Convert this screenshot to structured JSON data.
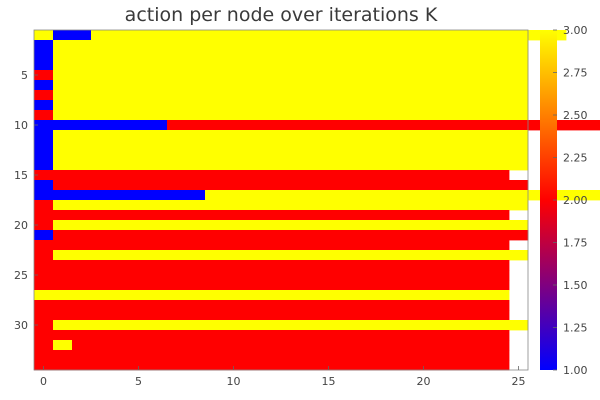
{
  "chart_data": {
    "type": "heatmap",
    "title": "action per node over iterations K",
    "xlabel": "",
    "ylabel": "",
    "x_range": [
      0,
      25
    ],
    "y_range": [
      1,
      34
    ],
    "x_ticks": [
      0,
      5,
      10,
      15,
      20,
      25
    ],
    "y_ticks": [
      5,
      10,
      15,
      20,
      25,
      30
    ],
    "colorbar": {
      "range": [
        1.0,
        3.0
      ],
      "ticks": [
        "1.00",
        "1.25",
        "1.50",
        "1.75",
        "2.00",
        "2.25",
        "2.50",
        "2.75",
        "3.00"
      ],
      "colormap": [
        "#0000ff",
        "#ff0000",
        "#ffff00"
      ]
    },
    "row_segments": [
      {
        "node": 1,
        "segments": [
          [
            1,
            3
          ],
          [
            2,
            1
          ],
          [
            25,
            3
          ]
        ]
      },
      {
        "node": 2,
        "segments": [
          [
            1,
            1
          ],
          [
            25,
            3
          ]
        ]
      },
      {
        "node": 3,
        "segments": [
          [
            1,
            1
          ],
          [
            25,
            3
          ]
        ]
      },
      {
        "node": 4,
        "segments": [
          [
            1,
            1
          ],
          [
            25,
            3
          ]
        ]
      },
      {
        "node": 5,
        "segments": [
          [
            1,
            2
          ],
          [
            25,
            3
          ]
        ]
      },
      {
        "node": 6,
        "segments": [
          [
            1,
            1
          ],
          [
            25,
            3
          ]
        ]
      },
      {
        "node": 7,
        "segments": [
          [
            1,
            2
          ],
          [
            25,
            3
          ]
        ]
      },
      {
        "node": 8,
        "segments": [
          [
            1,
            1
          ],
          [
            25,
            3
          ]
        ]
      },
      {
        "node": 9,
        "segments": [
          [
            1,
            2
          ],
          [
            25,
            3
          ]
        ]
      },
      {
        "node": 10,
        "segments": [
          [
            7,
            1
          ],
          [
            25,
            2
          ]
        ]
      },
      {
        "node": 11,
        "segments": [
          [
            1,
            1
          ],
          [
            25,
            3
          ]
        ]
      },
      {
        "node": 12,
        "segments": [
          [
            1,
            1
          ],
          [
            25,
            3
          ]
        ]
      },
      {
        "node": 13,
        "segments": [
          [
            1,
            1
          ],
          [
            25,
            3
          ]
        ]
      },
      {
        "node": 14,
        "segments": [
          [
            1,
            1
          ],
          [
            25,
            3
          ]
        ]
      },
      {
        "node": 15,
        "segments": [
          [
            25,
            2
          ]
        ]
      },
      {
        "node": 16,
        "segments": [
          [
            1,
            1
          ],
          [
            25,
            2
          ]
        ]
      },
      {
        "node": 17,
        "segments": [
          [
            9,
            1
          ],
          [
            25,
            3
          ]
        ]
      },
      {
        "node": 18,
        "segments": [
          [
            1,
            2
          ],
          [
            25,
            3
          ]
        ]
      },
      {
        "node": 19,
        "segments": [
          [
            25,
            2
          ]
        ]
      },
      {
        "node": 20,
        "segments": [
          [
            1,
            2
          ],
          [
            25,
            3
          ]
        ]
      },
      {
        "node": 21,
        "segments": [
          [
            1,
            1
          ],
          [
            25,
            2
          ]
        ]
      },
      {
        "node": 22,
        "segments": [
          [
            25,
            2
          ]
        ]
      },
      {
        "node": 23,
        "segments": [
          [
            1,
            2
          ],
          [
            25,
            3
          ]
        ]
      },
      {
        "node": 24,
        "segments": [
          [
            25,
            2
          ]
        ]
      },
      {
        "node": 25,
        "segments": [
          [
            25,
            2
          ]
        ]
      },
      {
        "node": 26,
        "segments": [
          [
            25,
            2
          ]
        ]
      },
      {
        "node": 27,
        "segments": [
          [
            25,
            3
          ]
        ]
      },
      {
        "node": 28,
        "segments": [
          [
            25,
            2
          ]
        ]
      },
      {
        "node": 29,
        "segments": [
          [
            25,
            2
          ]
        ]
      },
      {
        "node": 30,
        "segments": [
          [
            1,
            2
          ],
          [
            25,
            3
          ]
        ]
      },
      {
        "node": 31,
        "segments": [
          [
            25,
            2
          ]
        ]
      },
      {
        "node": 32,
        "segments": [
          [
            1,
            2
          ],
          [
            1,
            3
          ],
          [
            23,
            2
          ]
        ]
      },
      {
        "node": 33,
        "segments": [
          [
            25,
            2
          ]
        ]
      },
      {
        "node": 34,
        "segments": [
          [
            25,
            2
          ]
        ]
      }
    ]
  }
}
